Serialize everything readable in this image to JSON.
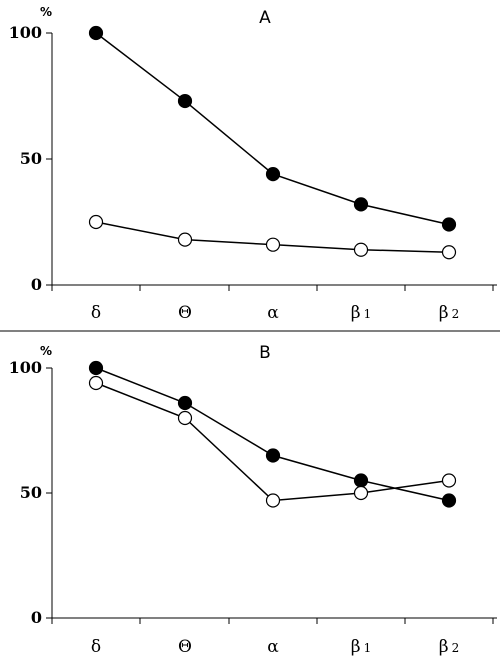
{
  "chart_data": [
    {
      "type": "line",
      "title": "A",
      "ylabel": "%",
      "ylim": [
        0,
        100
      ],
      "yticks": [
        "0",
        "50",
        "100"
      ],
      "categories": [
        {
          "base": "δ",
          "sub": ""
        },
        {
          "base": "Θ",
          "sub": ""
        },
        {
          "base": "α",
          "sub": ""
        },
        {
          "base": "β",
          "sub": "1"
        },
        {
          "base": "β",
          "sub": "2"
        }
      ],
      "series": [
        {
          "marker": "filled",
          "color": "#000000",
          "values": [
            100,
            73,
            44,
            32,
            24
          ]
        },
        {
          "marker": "open",
          "color": "#000000",
          "values": [
            25,
            18,
            16,
            14,
            13
          ]
        }
      ],
      "grid": false
    },
    {
      "type": "line",
      "title": "B",
      "ylabel": "%",
      "ylim": [
        0,
        100
      ],
      "yticks": [
        "0",
        "50",
        "100"
      ],
      "categories": [
        {
          "base": "δ",
          "sub": ""
        },
        {
          "base": "Θ",
          "sub": ""
        },
        {
          "base": "α",
          "sub": ""
        },
        {
          "base": "β",
          "sub": "1"
        },
        {
          "base": "β",
          "sub": "2"
        }
      ],
      "series": [
        {
          "marker": "filled",
          "color": "#000000",
          "values": [
            100,
            86,
            65,
            55,
            47
          ]
        },
        {
          "marker": "open",
          "color": "#000000",
          "values": [
            94,
            80,
            47,
            50,
            55
          ]
        }
      ],
      "grid": false
    }
  ]
}
